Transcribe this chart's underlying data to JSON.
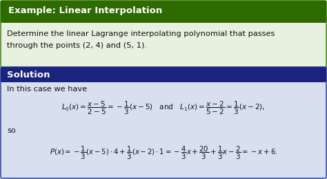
{
  "title": "Example: Linear Interpolation",
  "title_bg": "#2d6b00",
  "title_color": "#ffffff",
  "example_bg": "#e8f0e0",
  "example_border": "#4a8a1a",
  "example_text_line1": "Determine the linear Lagrange interpolating polynomial that passes",
  "example_text_line2": "through the points (2, 4) and (5, 1).",
  "solution_title": "Solution",
  "solution_title_bg": "#1a237e",
  "solution_title_color": "#ffffff",
  "solution_bg": "#d8e0f0",
  "solution_border": "#3a4aaa",
  "intro_text": "In this case we have",
  "so_text": "so"
}
